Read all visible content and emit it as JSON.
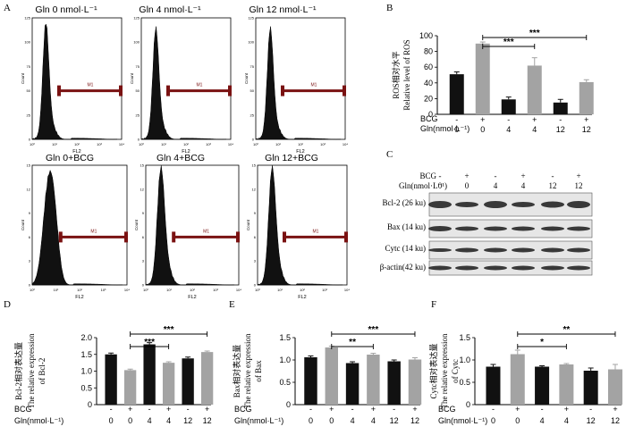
{
  "panel_letters": [
    "A",
    "B",
    "C",
    "D",
    "E",
    "F"
  ],
  "flow": {
    "titles": [
      "Gln 0 nmol·L⁻¹",
      "Gln 4 nmol·L⁻¹",
      "Gln 12 nmol·L⁻¹",
      "Gln 0+BCG",
      "Gln 4+BCG",
      "Gln 12+BCG"
    ],
    "gate_labels": [
      "M1",
      "M1",
      "M1",
      "M1",
      "M1",
      "M1"
    ],
    "x_label": "FL2",
    "y_label": "Count",
    "x_ticks": [
      "10⁰",
      "10¹",
      "10²",
      "10³",
      "10⁴"
    ],
    "y_ticks_top": [
      "0",
      "25",
      "50",
      "75",
      "100",
      "125"
    ],
    "y_ticks_bottom": [
      "0",
      "3",
      "6",
      "9",
      "12",
      "15"
    ]
  },
  "blot": {
    "bcg_label": "BCG",
    "gln_label": "Gln(nmol·L⁻¹)",
    "bcg_values": [
      "-",
      "+",
      "-",
      "+",
      "-",
      "+"
    ],
    "gln_values": [
      "0",
      "0",
      "4",
      "4",
      "12",
      "12"
    ],
    "bands": [
      "Bcl-2 (26 ku)",
      "Bax (14 ku)",
      "Cytc (14 ku)",
      "β-actin(42 ku)"
    ]
  },
  "colors": {
    "black_bar": "#111111",
    "gray_bar": "#a3a3a3"
  },
  "chart_data": [
    {
      "panel": "B",
      "type": "bar",
      "ylabel_cn": "ROS相对水平",
      "ylabel_en": "Relative level of ROS",
      "ylim": [
        0,
        100
      ],
      "yticks": [
        "0",
        "20",
        "40",
        "60",
        "80",
        "100"
      ],
      "bcg": [
        "-",
        "+",
        "-",
        "+",
        "-",
        "+"
      ],
      "gln": [
        "0",
        "0",
        "4",
        "4",
        "12",
        "12"
      ],
      "values": [
        51,
        90,
        19,
        62,
        15,
        41
      ],
      "errors": [
        3,
        2,
        3,
        10,
        4,
        3
      ],
      "sig": [
        {
          "from": 1,
          "to": 3,
          "label": "***"
        },
        {
          "from": 1,
          "to": 5,
          "label": "***"
        }
      ],
      "row_labels": [
        "BCG",
        "Gln(nmol·L⁻¹)"
      ]
    },
    {
      "panel": "D",
      "type": "bar",
      "ylabel_cn": "Bcl-2相对表达量",
      "ylabel_en": "The relative expression",
      "ylabel_en2": "of Bcl-2",
      "ylim": [
        0,
        2.0
      ],
      "yticks": [
        "0",
        "0.5",
        "1.0",
        "1.5",
        "2.0"
      ],
      "bcg": [
        "-",
        "+",
        "-",
        "+",
        "-",
        "+"
      ],
      "gln": [
        "0",
        "0",
        "4",
        "4",
        "12",
        "12"
      ],
      "values": [
        1.5,
        1.03,
        1.8,
        1.25,
        1.38,
        1.57
      ],
      "errors": [
        0.04,
        0.03,
        0.05,
        0.03,
        0.04,
        0.03
      ],
      "sig": [
        {
          "from": 1,
          "to": 3,
          "label": "***"
        },
        {
          "from": 1,
          "to": 5,
          "label": "***"
        }
      ],
      "row_labels": [
        "BCG",
        "Gln(nmol·L⁻¹)"
      ]
    },
    {
      "panel": "E",
      "type": "bar",
      "ylabel_cn": "Bax相对表达量",
      "ylabel_en": "The relative expression",
      "ylabel_en2": "of Bax",
      "ylim": [
        0,
        1.5
      ],
      "yticks": [
        "0",
        "0.5",
        "1.0",
        "1.5"
      ],
      "bcg": [
        "-",
        "+",
        "-",
        "+",
        "-",
        "+"
      ],
      "gln": [
        "0",
        "0",
        "4",
        "4",
        "12",
        "12"
      ],
      "values": [
        1.06,
        1.28,
        0.93,
        1.12,
        0.97,
        1.01
      ],
      "errors": [
        0.03,
        0.03,
        0.03,
        0.03,
        0.03,
        0.04
      ],
      "sig": [
        {
          "from": 1,
          "to": 3,
          "label": "**"
        },
        {
          "from": 1,
          "to": 5,
          "label": "***"
        }
      ],
      "row_labels": [
        "BCG",
        "Gln(nmol·L⁻¹)"
      ]
    },
    {
      "panel": "F",
      "type": "bar",
      "ylabel_cn": "Cytc相对表达量",
      "ylabel_en": "The relative expression",
      "ylabel_en2": "of Cytc",
      "ylim": [
        0,
        1.5
      ],
      "yticks": [
        "0",
        "0.5",
        "1.0",
        "1.5"
      ],
      "bcg": [
        "-",
        "+",
        "-",
        "+",
        "-",
        "+"
      ],
      "gln": [
        "0",
        "0",
        "4",
        "4",
        "12",
        "12"
      ],
      "values": [
        0.85,
        1.13,
        0.85,
        0.9,
        0.76,
        0.79
      ],
      "errors": [
        0.05,
        0.09,
        0.02,
        0.02,
        0.06,
        0.11
      ],
      "sig": [
        {
          "from": 1,
          "to": 3,
          "label": "*"
        },
        {
          "from": 1,
          "to": 5,
          "label": "**"
        }
      ],
      "row_labels": [
        "BCG",
        "Gln(nmol·L⁻¹)"
      ]
    }
  ]
}
